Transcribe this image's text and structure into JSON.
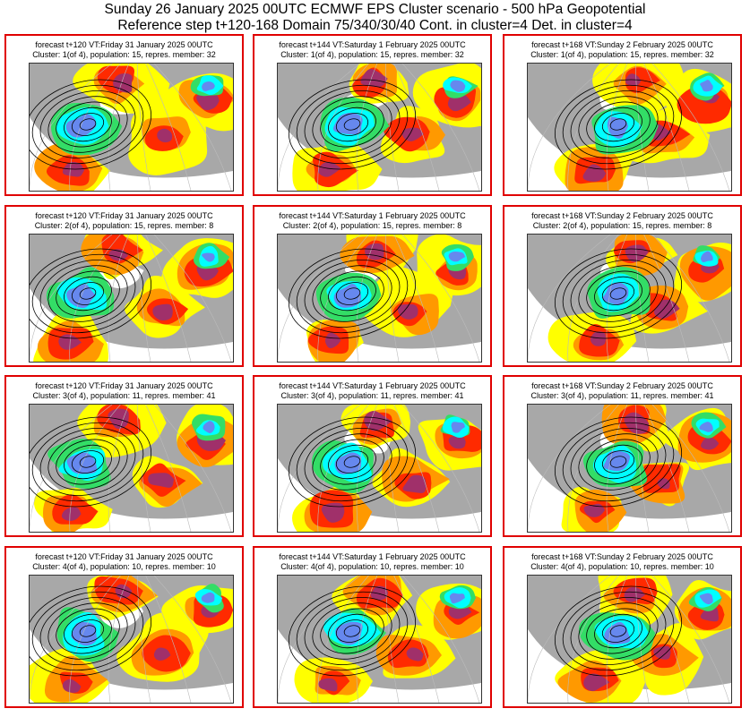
{
  "title": {
    "line1": "Sunday 26 January 2025 00UTC ECMWF EPS Cluster scenario - 500 hPa Geopotential",
    "line2": "Reference step t+120-168 Domain 75/340/30/40 Cont. in cluster=4 Det. in cluster=4"
  },
  "colors": {
    "border": "#e00000",
    "land": "#a8a8a8",
    "yellow": "#ffff00",
    "orange": "#ff9900",
    "red": "#ff2a00",
    "purple": "#a0306a",
    "green": "#33dd66",
    "cyan": "#00ffff",
    "blue": "#6688ee"
  },
  "columns": [
    {
      "forecast": "forecast t+120 VT:Friday 31 January 2025 00UTC"
    },
    {
      "forecast": "forecast t+144 VT:Saturday 1 February 2025 00UTC"
    },
    {
      "forecast": "forecast t+168 VT:Sunday 2 February 2025 00UTC"
    }
  ],
  "clusters": [
    {
      "label": "Cluster: 1(of 4), population: 15, repres. member: 32"
    },
    {
      "label": "Cluster: 2(of 4), population: 15, repres. member: 8"
    },
    {
      "label": "Cluster: 3(of 4), population: 11, repres. member: 41"
    },
    {
      "label": "Cluster: 4(of 4), population: 10, repres. member: 10"
    }
  ]
}
